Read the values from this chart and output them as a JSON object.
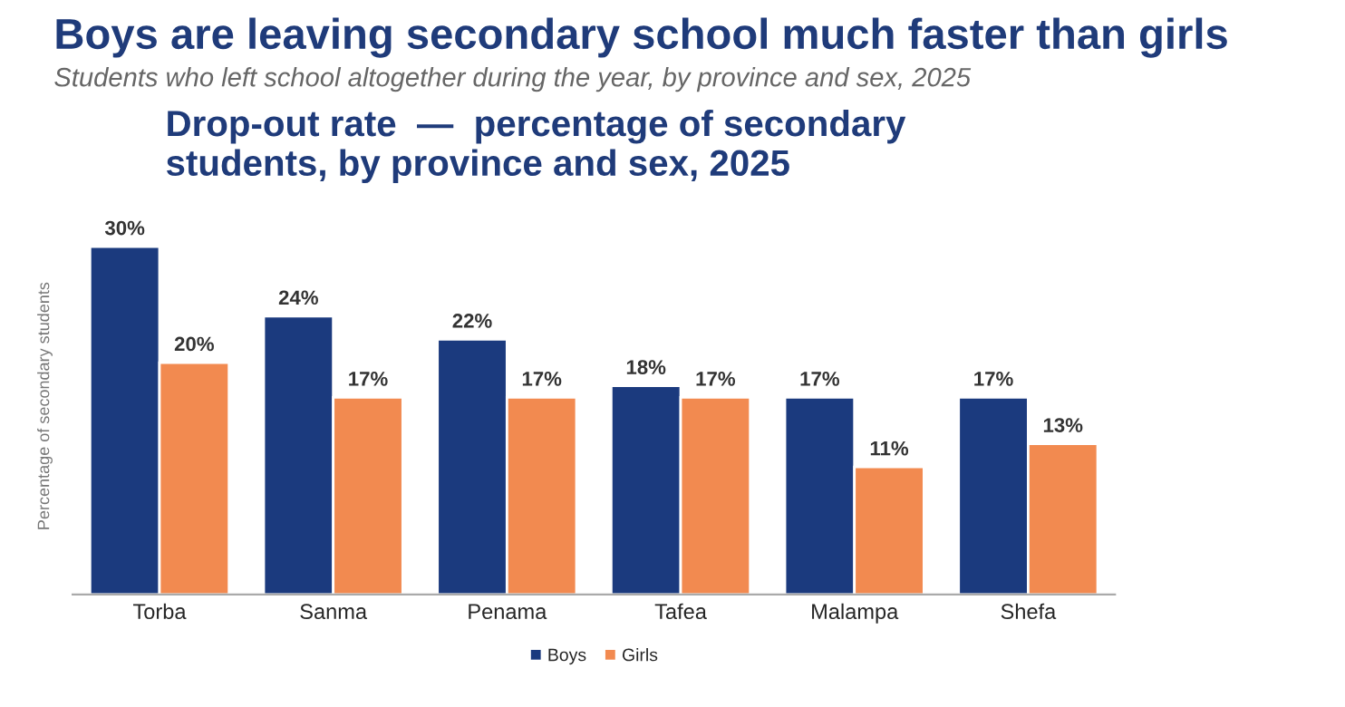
{
  "chart_data": {
    "type": "bar",
    "title": "Boys are leaving secondary school much faster than girls",
    "subtitle": "Students who left school altogether during the year, by province and sex, 2025",
    "annotations": [
      "Drop-out rate  —  percentage of secondary\nstudents, by province and sex, 2025"
    ],
    "ylabel": "Percentage of secondary students",
    "categories": [
      "Torba",
      "Sanma",
      "Penama",
      "Tafea",
      "Malampa",
      "Shefa"
    ],
    "series": [
      {
        "name": "Boys",
        "color": "#1b3a7e",
        "values": [
          30,
          24,
          22,
          18,
          17,
          17
        ],
        "value_labels": [
          "30%",
          "24%",
          "22%",
          "18%",
          "17%",
          "17%"
        ]
      },
      {
        "name": "Girls",
        "color": "#f28a50",
        "values": [
          20,
          17,
          17,
          17,
          11,
          13
        ],
        "value_labels": [
          "20%",
          "17%",
          "17%",
          "17%",
          "11%",
          "13%"
        ]
      }
    ],
    "legend": "bottom",
    "grid": false
  }
}
